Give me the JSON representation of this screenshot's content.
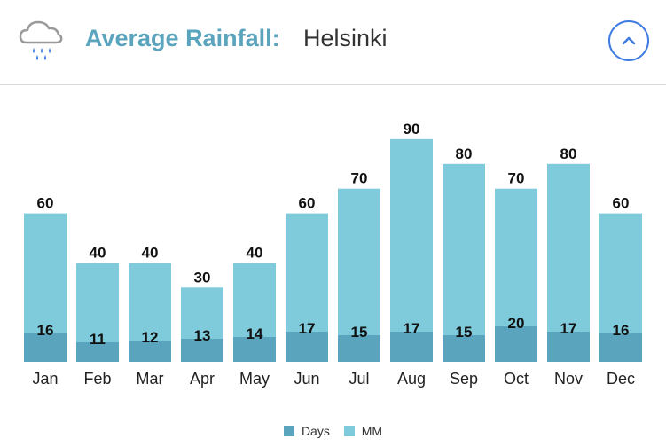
{
  "header": {
    "title_label": "Average Rainfall:",
    "city": "Helsinki",
    "weather_icon": "rain-cloud-icon",
    "collapse_icon": "chevron-up-icon"
  },
  "colors": {
    "days": "#5aa4bd",
    "mm": "#7fcadb",
    "title": "#5aa4bd",
    "button": "#3f7be0"
  },
  "legend": {
    "days_label": "Days",
    "mm_label": "MM"
  },
  "chart_data": {
    "type": "bar",
    "title": "Average Rainfall: Helsinki",
    "categories": [
      "Jan",
      "Feb",
      "Mar",
      "Apr",
      "May",
      "Jun",
      "Jul",
      "Aug",
      "Sep",
      "Oct",
      "Nov",
      "Dec"
    ],
    "series": [
      {
        "name": "MM",
        "values": [
          60,
          40,
          40,
          30,
          40,
          60,
          70,
          90,
          80,
          70,
          80,
          60
        ]
      },
      {
        "name": "Days",
        "values": [
          16,
          11,
          12,
          13,
          14,
          17,
          15,
          17,
          15,
          20,
          17,
          16
        ]
      }
    ],
    "xlabel": "",
    "ylabel": "",
    "ylim": [
      0,
      100
    ],
    "grid": false,
    "legend_position": "bottom-center"
  }
}
